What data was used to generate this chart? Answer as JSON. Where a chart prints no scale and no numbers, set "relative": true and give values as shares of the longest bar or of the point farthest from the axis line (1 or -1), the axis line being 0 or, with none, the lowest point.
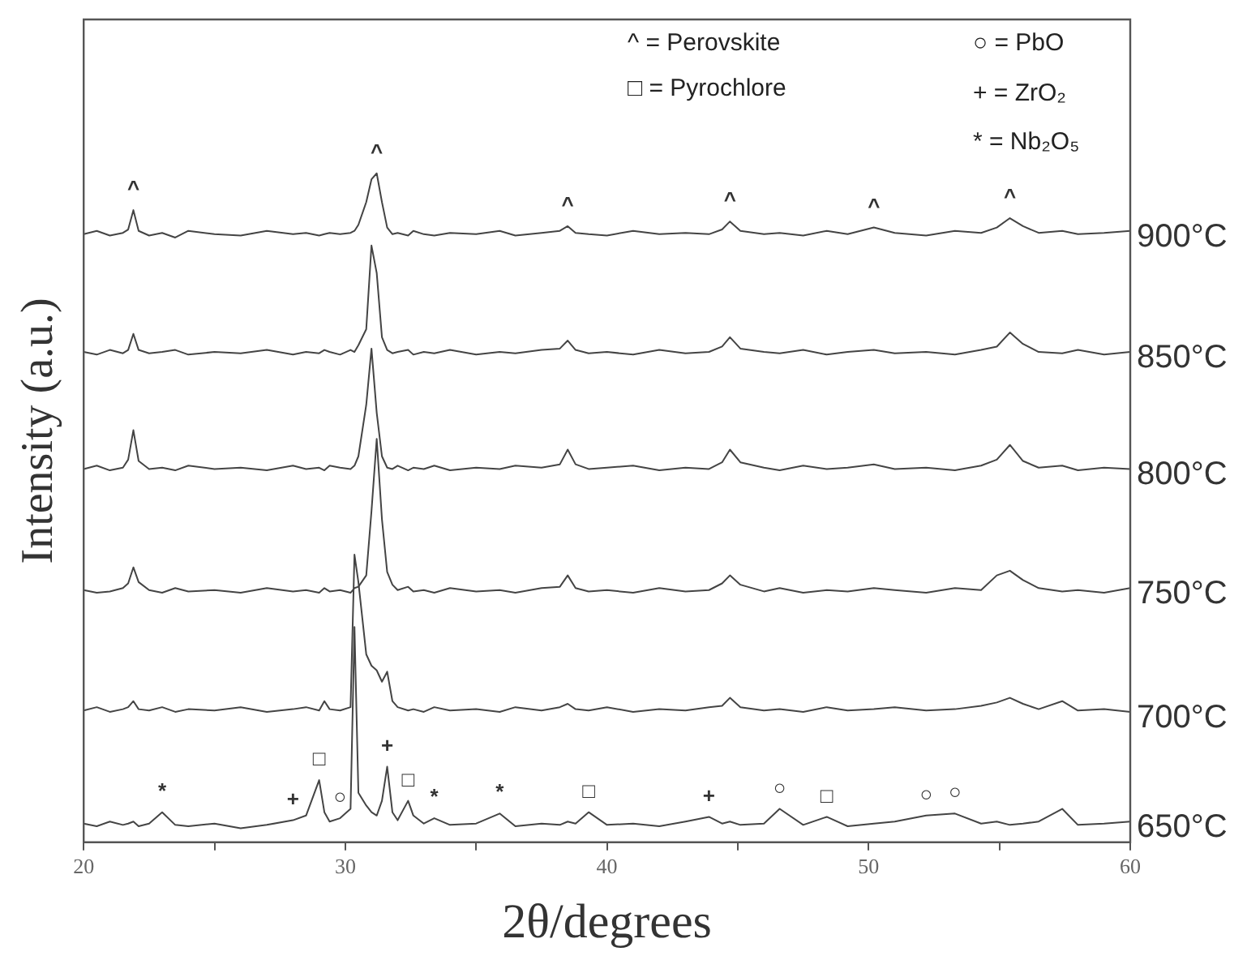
{
  "chart_data": {
    "type": "line",
    "relative": true,
    "xlabel": "2θ/degrees",
    "ylabel": "Intensity (a.u.)",
    "marker": "none",
    "legend": false,
    "xlim": [
      20,
      60
    ],
    "xticks": [
      20,
      {
        "value": 25,
        "label": null
      },
      30,
      {
        "value": 35,
        "label": null
      },
      40,
      {
        "value": 45,
        "label": null
      },
      50,
      {
        "value": 55,
        "label": null
      },
      60
    ],
    "x": [
      20,
      20.5,
      21,
      21.5,
      21.7,
      21.9,
      22.1,
      22.5,
      23,
      23.5,
      24,
      25,
      26,
      27,
      28,
      28.5,
      29,
      29.2,
      29.4,
      29.8,
      30.2,
      30.35,
      30.5,
      30.8,
      31.0,
      31.2,
      31.4,
      31.6,
      31.8,
      32.0,
      32.4,
      32.6,
      33,
      33.4,
      34,
      35,
      35.9,
      36.5,
      37.5,
      38.2,
      38.5,
      38.8,
      39.3,
      40,
      41,
      42,
      43,
      43.9,
      44.4,
      44.7,
      45.1,
      46,
      46.6,
      47.5,
      48.4,
      49.2,
      50.2,
      51,
      52.2,
      53.3,
      54.3,
      54.9,
      55.4,
      55.9,
      56.5,
      57.4,
      58,
      59,
      60
    ],
    "series": [
      {
        "name": "900°C",
        "color": "#444444",
        "values": [
          0.909,
          0.914,
          0.907,
          0.911,
          0.916,
          0.945,
          0.914,
          0.907,
          0.911,
          0.904,
          0.914,
          0.909,
          0.907,
          0.914,
          0.909,
          0.911,
          0.907,
          0.909,
          0.911,
          0.909,
          0.911,
          0.914,
          0.923,
          0.957,
          0.991,
          1.0,
          0.957,
          0.919,
          0.909,
          0.911,
          0.907,
          0.914,
          0.909,
          0.907,
          0.911,
          0.909,
          0.914,
          0.907,
          0.911,
          0.914,
          0.921,
          0.911,
          0.909,
          0.907,
          0.914,
          0.909,
          0.911,
          0.909,
          0.916,
          0.928,
          0.914,
          0.909,
          0.911,
          0.907,
          0.914,
          0.909,
          0.919,
          0.911,
          0.907,
          0.914,
          0.911,
          0.919,
          0.933,
          0.921,
          0.911,
          0.914,
          0.909,
          0.911,
          0.914
        ]
      },
      {
        "name": "850°C",
        "color": "#444444",
        "values": [
          0.733,
          0.729,
          0.736,
          0.731,
          0.736,
          0.76,
          0.736,
          0.731,
          0.733,
          0.736,
          0.729,
          0.733,
          0.731,
          0.736,
          0.729,
          0.733,
          0.731,
          0.736,
          0.733,
          0.729,
          0.736,
          0.733,
          0.743,
          0.767,
          0.892,
          0.851,
          0.755,
          0.736,
          0.731,
          0.733,
          0.736,
          0.729,
          0.733,
          0.731,
          0.736,
          0.729,
          0.733,
          0.731,
          0.736,
          0.738,
          0.75,
          0.736,
          0.731,
          0.733,
          0.729,
          0.736,
          0.731,
          0.733,
          0.741,
          0.755,
          0.738,
          0.733,
          0.731,
          0.736,
          0.729,
          0.733,
          0.736,
          0.731,
          0.733,
          0.729,
          0.736,
          0.741,
          0.762,
          0.745,
          0.733,
          0.731,
          0.736,
          0.729,
          0.733
        ]
      },
      {
        "name": "800°C",
        "color": "#444444",
        "values": [
          0.558,
          0.563,
          0.556,
          0.56,
          0.572,
          0.616,
          0.57,
          0.558,
          0.56,
          0.556,
          0.563,
          0.558,
          0.56,
          0.556,
          0.563,
          0.558,
          0.56,
          0.556,
          0.563,
          0.56,
          0.558,
          0.563,
          0.577,
          0.654,
          0.738,
          0.642,
          0.577,
          0.56,
          0.558,
          0.563,
          0.556,
          0.56,
          0.558,
          0.563,
          0.556,
          0.56,
          0.558,
          0.563,
          0.56,
          0.565,
          0.587,
          0.565,
          0.558,
          0.56,
          0.563,
          0.556,
          0.56,
          0.558,
          0.568,
          0.587,
          0.568,
          0.56,
          0.556,
          0.563,
          0.558,
          0.56,
          0.565,
          0.558,
          0.56,
          0.556,
          0.563,
          0.572,
          0.594,
          0.57,
          0.56,
          0.563,
          0.556,
          0.56,
          0.558
        ]
      },
      {
        "name": "750°C",
        "color": "#444444",
        "values": [
          0.377,
          0.373,
          0.375,
          0.38,
          0.387,
          0.411,
          0.389,
          0.377,
          0.373,
          0.38,
          0.375,
          0.377,
          0.373,
          0.38,
          0.375,
          0.377,
          0.373,
          0.38,
          0.375,
          0.377,
          0.373,
          0.38,
          0.382,
          0.399,
          0.495,
          0.603,
          0.483,
          0.404,
          0.385,
          0.377,
          0.382,
          0.375,
          0.377,
          0.373,
          0.38,
          0.375,
          0.377,
          0.373,
          0.38,
          0.382,
          0.399,
          0.38,
          0.375,
          0.377,
          0.373,
          0.38,
          0.375,
          0.377,
          0.387,
          0.399,
          0.385,
          0.375,
          0.38,
          0.373,
          0.377,
          0.375,
          0.38,
          0.377,
          0.373,
          0.38,
          0.377,
          0.399,
          0.406,
          0.392,
          0.38,
          0.375,
          0.377,
          0.373,
          0.38
        ]
      },
      {
        "name": "700°C",
        "color": "#444444",
        "values": [
          0.197,
          0.202,
          0.195,
          0.199,
          0.202,
          0.211,
          0.199,
          0.197,
          0.202,
          0.195,
          0.199,
          0.197,
          0.202,
          0.195,
          0.199,
          0.202,
          0.197,
          0.211,
          0.199,
          0.197,
          0.202,
          0.43,
          0.389,
          0.281,
          0.264,
          0.257,
          0.24,
          0.255,
          0.211,
          0.202,
          0.197,
          0.199,
          0.195,
          0.202,
          0.197,
          0.199,
          0.195,
          0.202,
          0.197,
          0.202,
          0.207,
          0.199,
          0.197,
          0.202,
          0.195,
          0.199,
          0.197,
          0.202,
          0.204,
          0.216,
          0.202,
          0.197,
          0.199,
          0.195,
          0.202,
          0.197,
          0.199,
          0.202,
          0.197,
          0.199,
          0.204,
          0.209,
          0.216,
          0.207,
          0.199,
          0.211,
          0.197,
          0.199,
          0.195
        ]
      },
      {
        "name": "650°C",
        "color": "#444444",
        "values": [
          0.028,
          0.024,
          0.031,
          0.026,
          0.028,
          0.031,
          0.024,
          0.028,
          0.045,
          0.026,
          0.024,
          0.028,
          0.021,
          0.026,
          0.033,
          0.04,
          0.093,
          0.045,
          0.031,
          0.036,
          0.05,
          0.322,
          0.074,
          0.055,
          0.045,
          0.04,
          0.062,
          0.113,
          0.045,
          0.033,
          0.062,
          0.04,
          0.028,
          0.036,
          0.026,
          0.028,
          0.043,
          0.024,
          0.028,
          0.026,
          0.031,
          0.028,
          0.045,
          0.026,
          0.028,
          0.024,
          0.031,
          0.038,
          0.028,
          0.031,
          0.026,
          0.028,
          0.05,
          0.026,
          0.038,
          0.024,
          0.028,
          0.031,
          0.04,
          0.043,
          0.028,
          0.031,
          0.026,
          0.028,
          0.031,
          0.05,
          0.026,
          0.028,
          0.031
        ]
      }
    ],
    "annotations": [
      "^ = Perovskite",
      "□ = Pyrochlore",
      "○ = PbO",
      "+ = ZrO₂",
      "* = Nb₂O₅",
      {
        "text": "^",
        "x": 21.9,
        "y": 0.945
      },
      {
        "text": "^",
        "x": 31.2,
        "y": 1.0
      },
      {
        "text": "^",
        "x": 38.5,
        "y": 0.921
      },
      {
        "text": "^",
        "x": 44.7,
        "y": 0.928
      },
      {
        "text": "^",
        "x": 50.2,
        "y": 0.919
      },
      {
        "text": "^",
        "x": 55.4,
        "y": 0.933
      },
      {
        "text": "*",
        "x": 23,
        "y": 0.045
      },
      {
        "text": "+",
        "x": 28,
        "y": 0.033
      },
      {
        "text": "□",
        "x": 29,
        "y": 0.093
      },
      {
        "text": "○",
        "x": 29.8,
        "y": 0.036
      },
      {
        "text": "+",
        "x": 31.6,
        "y": 0.113
      },
      {
        "text": "□",
        "x": 32.4,
        "y": 0.062
      },
      {
        "text": "*",
        "x": 33.4,
        "y": 0.036
      },
      {
        "text": "*",
        "x": 35.9,
        "y": 0.043
      },
      {
        "text": "□",
        "x": 39.3,
        "y": 0.045
      },
      {
        "text": "+",
        "x": 43.9,
        "y": 0.038
      },
      {
        "text": "○",
        "x": 46.6,
        "y": 0.05
      },
      {
        "text": "□",
        "x": 48.4,
        "y": 0.038
      },
      {
        "text": "○",
        "x": 52.2,
        "y": 0.04
      },
      {
        "text": "○",
        "x": 53.3,
        "y": 0.043
      }
    ]
  }
}
